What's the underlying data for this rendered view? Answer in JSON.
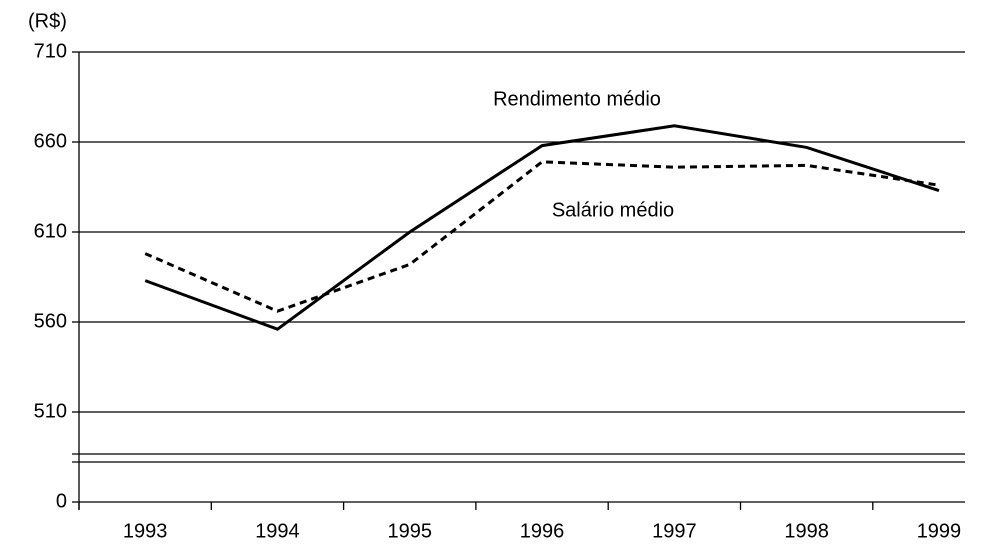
{
  "chart_data": {
    "type": "line",
    "y_unit": "(R$)",
    "categories": [
      "1993",
      "1994",
      "1995",
      "1996",
      "1997",
      "1998",
      "1999"
    ],
    "series": [
      {
        "name": "Rendimento médio",
        "color": "#000000",
        "line_style": "solid",
        "values": [
          583,
          556,
          610,
          658,
          669,
          657,
          633
        ]
      },
      {
        "name": "Salário médio",
        "color": "#000000",
        "line_style": "dashed",
        "values": [
          598,
          566,
          592,
          649,
          646,
          647,
          636
        ]
      }
    ],
    "ylim": [
      0,
      710
    ],
    "yticks": [
      0,
      510,
      560,
      610,
      660,
      710
    ],
    "axis_break": true,
    "grid": true
  }
}
